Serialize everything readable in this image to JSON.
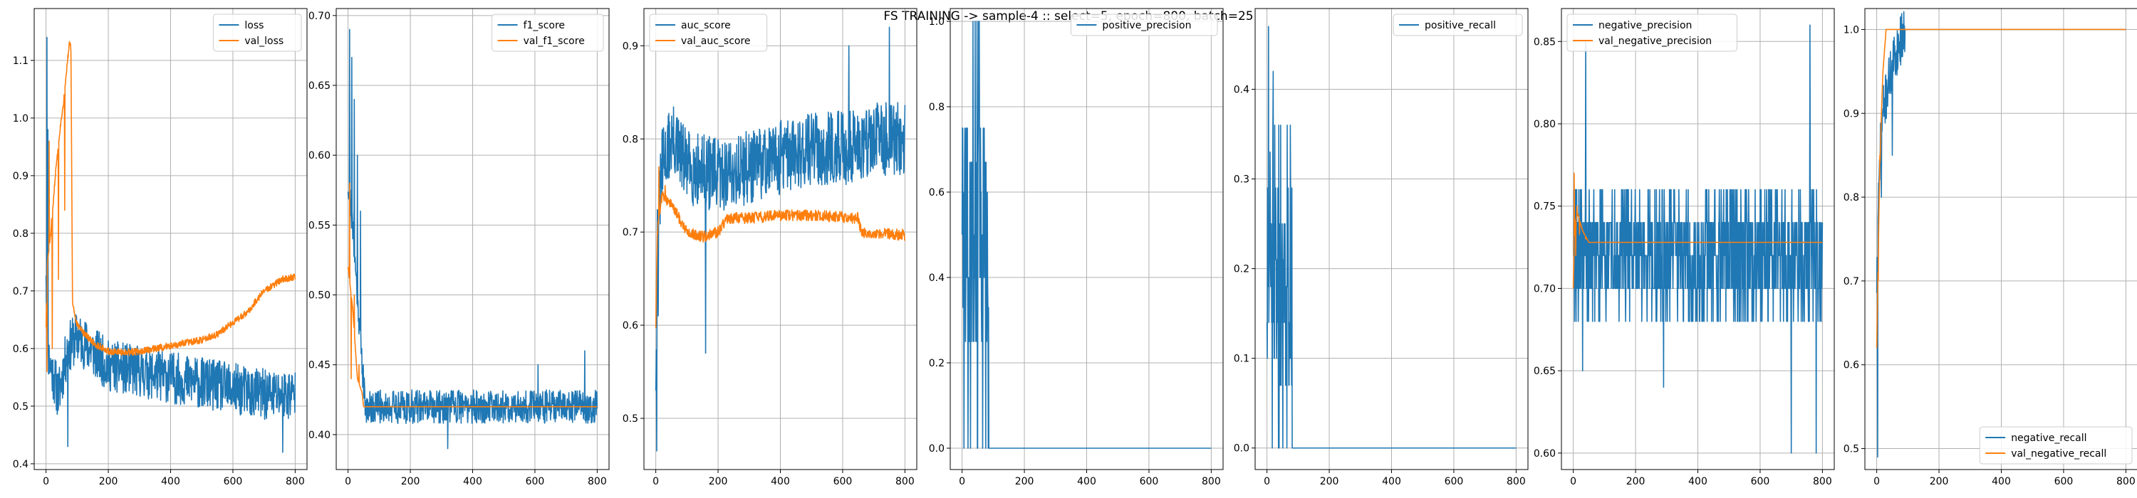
{
  "figure": {
    "title": "FS TRAINING -> sample-4 :: select=5, epoch=800, batch=25",
    "colors": {
      "train": "#1f77b4",
      "val": "#ff7f0e",
      "grid": "#b0b0b0"
    }
  },
  "chart_data": [
    {
      "type": "line",
      "title": "",
      "xlabel": "",
      "ylabel": "",
      "xlim": [
        -38,
        838
      ],
      "ylim": [
        0.39,
        1.19
      ],
      "xticks": [
        0,
        200,
        400,
        600,
        800
      ],
      "yticks": [
        0.4,
        0.5,
        0.6,
        0.7,
        0.8,
        0.9,
        1.0,
        1.1
      ],
      "grid": true,
      "legend_position": "top-right",
      "series": [
        {
          "name": "loss",
          "color": "#1f77b4",
          "style": {
            "kind": "noisy",
            "base": [
              [
                0,
                0.75
              ],
              [
                3,
                0.62
              ],
              [
                10,
                0.58
              ],
              [
                40,
                0.52
              ],
              [
                70,
                0.6
              ],
              [
                100,
                0.62
              ],
              [
                200,
                0.57
              ],
              [
                300,
                0.56
              ],
              [
                400,
                0.55
              ],
              [
                500,
                0.54
              ],
              [
                600,
                0.53
              ],
              [
                700,
                0.52
              ],
              [
                800,
                0.52
              ]
            ],
            "noise": 0.045,
            "spikes": [
              [
                3,
                1.14
              ],
              [
                6,
                0.98
              ],
              [
                70,
                0.43
              ],
              [
                760,
                0.42
              ]
            ],
            "seed": 11
          }
        },
        {
          "name": "val_loss",
          "color": "#ff7f0e",
          "style": {
            "kind": "noisy",
            "base": [
              [
                0,
                0.64
              ],
              [
                5,
                0.75
              ],
              [
                15,
                0.8
              ],
              [
                30,
                0.9
              ],
              [
                45,
                0.98
              ],
              [
                55,
                1.02
              ],
              [
                65,
                1.08
              ],
              [
                75,
                1.13
              ],
              [
                80,
                1.12
              ],
              [
                85,
                0.68
              ],
              [
                100,
                0.64
              ],
              [
                150,
                0.61
              ],
              [
                200,
                0.595
              ],
              [
                250,
                0.593
              ],
              [
                300,
                0.595
              ],
              [
                400,
                0.605
              ],
              [
                500,
                0.615
              ],
              [
                550,
                0.625
              ],
              [
                600,
                0.645
              ],
              [
                650,
                0.665
              ],
              [
                700,
                0.7
              ],
              [
                760,
                0.72
              ],
              [
                800,
                0.725
              ]
            ],
            "noise": 0.006,
            "spikes": [
              [
                3,
                0.56
              ],
              [
                10,
                0.96
              ],
              [
                20,
                0.6
              ],
              [
                40,
                0.72
              ],
              [
                60,
                0.84
              ]
            ],
            "seed": 12
          }
        }
      ]
    },
    {
      "type": "line",
      "title": "",
      "xlabel": "",
      "ylabel": "",
      "xlim": [
        -38,
        838
      ],
      "ylim": [
        0.375,
        0.705
      ],
      "xticks": [
        0,
        200,
        400,
        600,
        800
      ],
      "yticks": [
        0.4,
        0.45,
        0.5,
        0.55,
        0.6,
        0.65,
        0.7
      ],
      "grid": true,
      "legend_position": "top-right",
      "series": [
        {
          "name": "f1_score",
          "color": "#1f77b4",
          "style": {
            "kind": "noisy",
            "base": [
              [
                0,
                0.58
              ],
              [
                10,
                0.56
              ],
              [
                30,
                0.5
              ],
              [
                55,
                0.42
              ],
              [
                800,
                0.42
              ]
            ],
            "noise": 0.012,
            "spikes": [
              [
                5,
                0.69
              ],
              [
                12,
                0.67
              ],
              [
                20,
                0.64
              ],
              [
                30,
                0.6
              ],
              [
                40,
                0.56
              ],
              [
                320,
                0.39
              ],
              [
                610,
                0.45
              ],
              [
                760,
                0.46
              ]
            ],
            "seed": 21
          }
        },
        {
          "name": "val_f1_score",
          "color": "#ff7f0e",
          "style": {
            "kind": "noisy",
            "base": [
              [
                0,
                0.52
              ],
              [
                15,
                0.49
              ],
              [
                30,
                0.44
              ],
              [
                45,
                0.43
              ],
              [
                50,
                0.42
              ],
              [
                800,
                0.42
              ]
            ],
            "noise": 0.0,
            "spikes": [
              [
                5,
                0.58
              ],
              [
                10,
                0.44
              ],
              [
                20,
                0.5
              ],
              [
                35,
                0.45
              ]
            ],
            "seed": 22
          }
        }
      ]
    },
    {
      "type": "line",
      "title": "",
      "xlabel": "",
      "ylabel": "",
      "xlim": [
        -38,
        838
      ],
      "ylim": [
        0.445,
        0.94
      ],
      "xticks": [
        0,
        200,
        400,
        600,
        800
      ],
      "yticks": [
        0.5,
        0.6,
        0.7,
        0.8,
        0.9
      ],
      "grid": true,
      "legend_position": "top-left",
      "series": [
        {
          "name": "auc_score",
          "color": "#1f77b4",
          "style": {
            "kind": "noisy",
            "base": [
              [
                0,
                0.55
              ],
              [
                5,
                0.7
              ],
              [
                20,
                0.77
              ],
              [
                50,
                0.8
              ],
              [
                100,
                0.77
              ],
              [
                200,
                0.76
              ],
              [
                300,
                0.77
              ],
              [
                400,
                0.78
              ],
              [
                500,
                0.79
              ],
              [
                600,
                0.79
              ],
              [
                700,
                0.8
              ],
              [
                800,
                0.8
              ]
            ],
            "noise": 0.04,
            "spikes": [
              [
                3,
                0.465
              ],
              [
                8,
                0.61
              ],
              [
                160,
                0.57
              ],
              [
                750,
                0.92
              ],
              [
                620,
                0.9
              ]
            ],
            "seed": 31
          }
        },
        {
          "name": "val_auc_score",
          "color": "#ff7f0e",
          "style": {
            "kind": "noisy",
            "base": [
              [
                0,
                0.6
              ],
              [
                5,
                0.7
              ],
              [
                20,
                0.74
              ],
              [
                50,
                0.73
              ],
              [
                100,
                0.7
              ],
              [
                150,
                0.695
              ],
              [
                200,
                0.7
              ],
              [
                230,
                0.715
              ],
              [
                300,
                0.715
              ],
              [
                400,
                0.718
              ],
              [
                500,
                0.718
              ],
              [
                600,
                0.716
              ],
              [
                650,
                0.715
              ],
              [
                660,
                0.7
              ],
              [
                800,
                0.697
              ]
            ],
            "noise": 0.006,
            "spikes": [
              [
                10,
                0.77
              ],
              [
                30,
                0.75
              ],
              [
                60,
                0.72
              ],
              [
                90,
                0.71
              ]
            ],
            "seed": 32
          }
        }
      ]
    },
    {
      "type": "line",
      "title": "",
      "xlabel": "",
      "ylabel": "",
      "xlim": [
        -38,
        838
      ],
      "ylim": [
        -0.05,
        1.03
      ],
      "xticks": [
        0,
        200,
        400,
        600,
        800
      ],
      "yticks": [
        0.0,
        0.2,
        0.4,
        0.6,
        0.8,
        1.0
      ],
      "grid": true,
      "legend_position": "top-right",
      "series": [
        {
          "name": "positive_precision",
          "color": "#1f77b4",
          "style": {
            "kind": "burst",
            "burst_end": 85,
            "levels": [
              0.0,
              0.33,
              0.5,
              0.67,
              1.0,
              0.4,
              0.6,
              0.25,
              0.75
            ],
            "tail": 0.0,
            "seed": 41
          }
        }
      ]
    },
    {
      "type": "line",
      "title": "",
      "xlabel": "",
      "ylabel": "",
      "xlim": [
        -38,
        838
      ],
      "ylim": [
        -0.024,
        0.49
      ],
      "xticks": [
        0,
        200,
        400,
        600,
        800
      ],
      "yticks": [
        0.0,
        0.1,
        0.2,
        0.3,
        0.4
      ],
      "grid": true,
      "legend_position": "top-right",
      "series": [
        {
          "name": "positive_recall",
          "color": "#1f77b4",
          "style": {
            "kind": "burst",
            "burst_end": 80,
            "levels": [
              0.0,
              0.07,
              0.14,
              0.18,
              0.21,
              0.25,
              0.29,
              0.36,
              0.1
            ],
            "tail": 0.0,
            "spikes": [
              [
                5,
                0.47
              ],
              [
                20,
                0.42
              ],
              [
                10,
                0.33
              ]
            ],
            "seed": 51
          }
        }
      ]
    },
    {
      "type": "line",
      "title": "",
      "xlabel": "",
      "ylabel": "",
      "xlim": [
        -38,
        838
      ],
      "ylim": [
        0.59,
        0.87
      ],
      "xticks": [
        0,
        200,
        400,
        600,
        800
      ],
      "yticks": [
        0.6,
        0.65,
        0.7,
        0.75,
        0.8,
        0.85
      ],
      "grid": true,
      "legend_position": "top-left",
      "series": [
        {
          "name": "negative_precision",
          "color": "#1f77b4",
          "style": {
            "kind": "levels",
            "levels": [
              0.68,
              0.7,
              0.72,
              0.74,
              0.76,
              0.7,
              0.72,
              0.74
            ],
            "spikes": [
              [
                40,
                0.85
              ],
              [
                760,
                0.86
              ],
              [
                30,
                0.65
              ],
              [
                290,
                0.64
              ],
              [
                700,
                0.6
              ],
              [
                780,
                0.6
              ]
            ],
            "seed": 61
          }
        },
        {
          "name": "val_negative_precision",
          "color": "#ff7f0e",
          "style": {
            "kind": "noisy",
            "base": [
              [
                0,
                0.7
              ],
              [
                5,
                0.74
              ],
              [
                15,
                0.745
              ],
              [
                30,
                0.735
              ],
              [
                50,
                0.728
              ],
              [
                800,
                0.728
              ]
            ],
            "noise": 0.0,
            "spikes": [
              [
                3,
                0.77
              ],
              [
                8,
                0.72
              ],
              [
                12,
                0.75
              ],
              [
                20,
                0.733
              ],
              [
                40,
                0.73
              ]
            ],
            "seed": 62
          }
        }
      ]
    },
    {
      "type": "line",
      "title": "",
      "xlabel": "",
      "ylabel": "",
      "xlim": [
        -38,
        838
      ],
      "ylim": [
        0.475,
        1.025
      ],
      "xticks": [
        0,
        200,
        400,
        600,
        800
      ],
      "yticks": [
        0.5,
        0.6,
        0.7,
        0.8,
        0.9,
        1.0
      ],
      "grid": true,
      "legend_position": "bottom-right",
      "series": [
        {
          "name": "negative_recall",
          "color": "#1f77b4",
          "style": {
            "kind": "noisy",
            "base": [
              [
                0,
                0.7
              ],
              [
                10,
                0.85
              ],
              [
                20,
                0.9
              ],
              [
                40,
                0.94
              ],
              [
                60,
                0.97
              ],
              [
                90,
                1.0
              ],
              [
                800,
                1.0
              ]
            ],
            "noise": 0.03,
            "noise_until": 90,
            "spikes": [
              [
                3,
                0.49
              ],
              [
                15,
                0.8
              ],
              [
                50,
                0.85
              ]
            ],
            "seed": 71
          }
        },
        {
          "name": "val_negative_recall",
          "color": "#ff7f0e",
          "style": {
            "kind": "noisy",
            "base": [
              [
                0,
                0.62
              ],
              [
                8,
                0.8
              ],
              [
                15,
                0.9
              ],
              [
                20,
                0.95
              ],
              [
                30,
                1.0
              ],
              [
                800,
                1.0
              ]
            ],
            "noise": 0.0,
            "spikes": [
              [
                5,
                0.7
              ],
              [
                10,
                0.85
              ]
            ],
            "seed": 72
          }
        }
      ]
    }
  ]
}
